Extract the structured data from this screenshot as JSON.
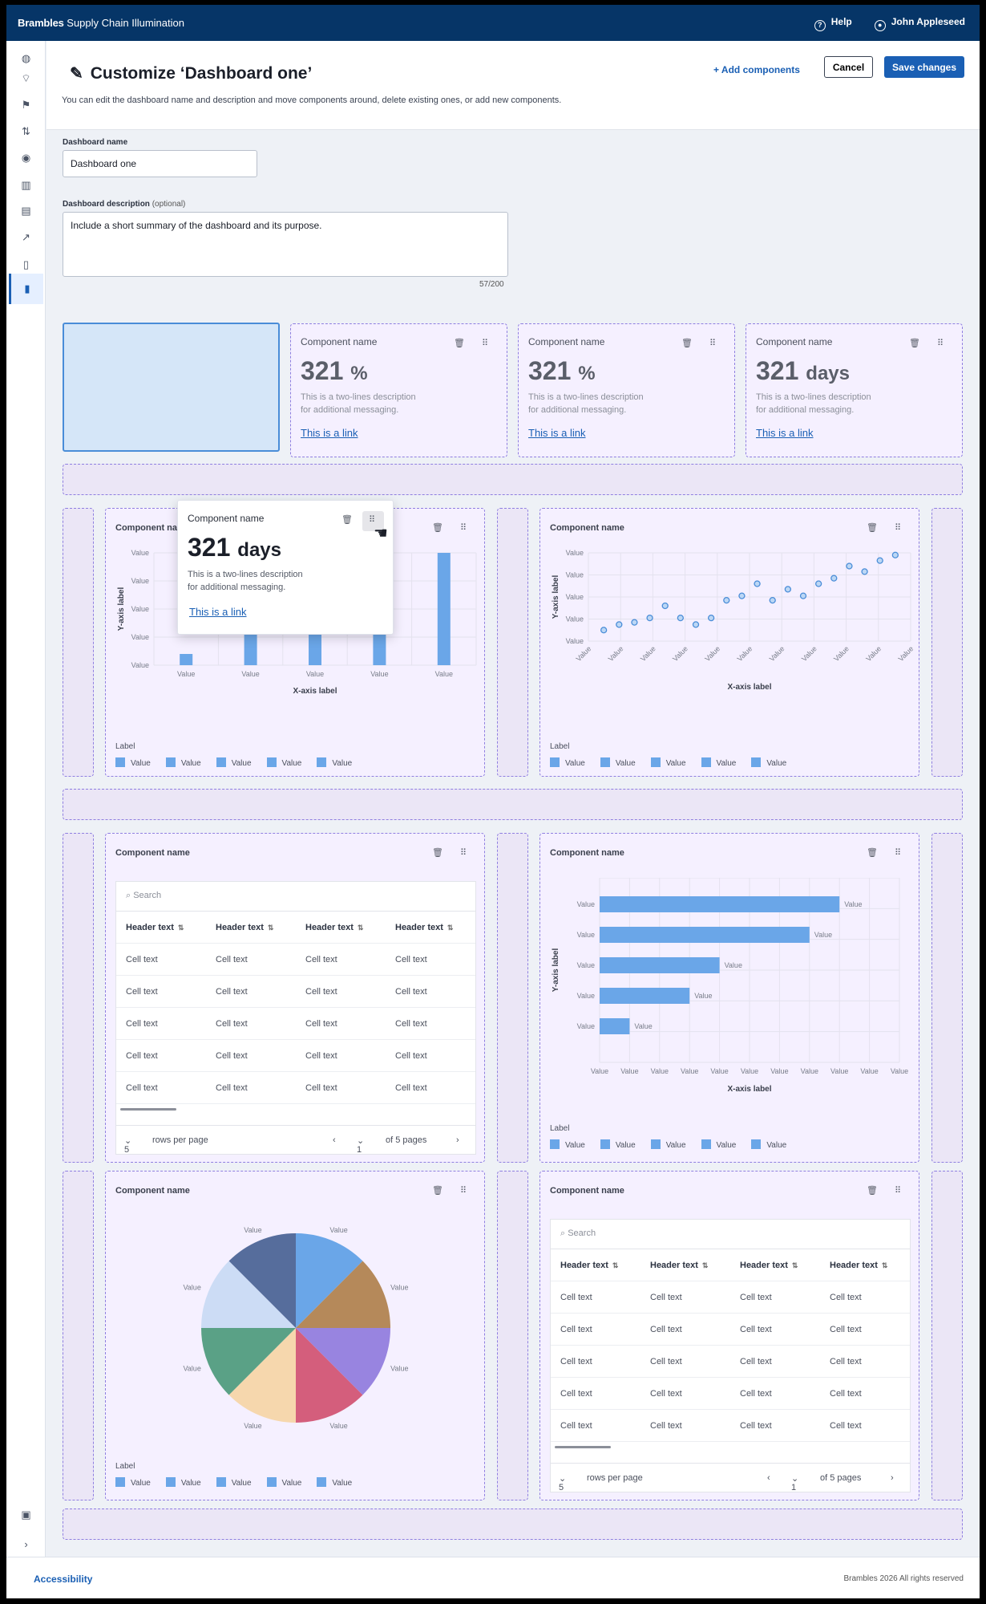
{
  "app": {
    "brand_bold": "Brambles",
    "brand_rest": "Supply Chain Illumination",
    "help": "Help",
    "user": "John Appleseed"
  },
  "header": {
    "title": "Customize ‘Dashboard one’",
    "subtitle": "You can edit the dashboard name and description and move components around, delete existing ones, or add new components.",
    "add_components": "Add components",
    "cancel": "Cancel",
    "save": "Save changes"
  },
  "form": {
    "name_label": "Dashboard name",
    "name_value": "Dashboard one",
    "desc_label": "Dashboard description",
    "desc_optional": "(optional)",
    "desc_value": "Include a short summary of the dashboard and its purpose.",
    "counter": "57/200"
  },
  "kpi": {
    "name": "Component name",
    "value1": "321",
    "unit1": "%",
    "value2": "321",
    "unit2": "%",
    "value3": "321",
    "unit3": "days",
    "desc_l1": "This is a two-lines description",
    "desc_l2": "for additional messaging.",
    "link": "This is a link"
  },
  "popup": {
    "name": "Component name",
    "value": "321",
    "unit": "days",
    "desc_l1": "This is a two-lines description",
    "desc_l2": "for additional messaging.",
    "link": "This is a link"
  },
  "components": {
    "name": "Component name",
    "legend_title": "Label",
    "legend_item": "Value"
  },
  "table": {
    "search": "Search",
    "headers": [
      "Header text",
      "Header text",
      "Header text",
      "Header text"
    ],
    "cell": "Cell text",
    "rows_value": "5",
    "rows_label": "rows per page",
    "page_value": "1",
    "page_of": "of 5 pages"
  },
  "footer": {
    "accessibility": "Accessibility",
    "copyright": "Brambles 2026 All rights reserved"
  },
  "chart_data": [
    {
      "type": "bar",
      "categories": [
        "Value",
        "Value",
        "Value",
        "Value",
        "Value"
      ],
      "values": [
        1,
        4,
        7,
        5,
        10
      ],
      "ylim": [
        0,
        10
      ],
      "ytick_labels": [
        "Value",
        "Value",
        "Value",
        "Value",
        "Value"
      ],
      "xlabel": "X-axis label",
      "ylabel": "Y-axis label",
      "legend": "bottom-left"
    },
    {
      "type": "scatter",
      "x": [
        1,
        2,
        3,
        4,
        5,
        6,
        7,
        8,
        9,
        10,
        11,
        12,
        13,
        14,
        15,
        16,
        17,
        18,
        19,
        20
      ],
      "y": [
        1,
        1.5,
        1.7,
        2.1,
        3.2,
        2.1,
        1.5,
        2.1,
        3.7,
        4.1,
        5.2,
        3.7,
        4.7,
        4.1,
        5.2,
        5.7,
        6.8,
        6.3,
        7.3,
        7.8
      ],
      "xtick_labels": [
        "Value",
        "Value",
        "Value",
        "Value",
        "Value",
        "Value",
        "Value",
        "Value",
        "Value",
        "Value",
        "Value"
      ],
      "ytick_labels": [
        "Value",
        "Value",
        "Value",
        "Value",
        "Value"
      ],
      "xlabel": "X-axis label",
      "ylabel": "Y-axis label",
      "legend": "bottom-left"
    },
    {
      "type": "bar",
      "orientation": "horizontal",
      "categories": [
        "Value",
        "Value",
        "Value",
        "Value",
        "Value"
      ],
      "values": [
        8,
        7,
        4,
        3,
        1
      ],
      "xlim": [
        0,
        10
      ],
      "data_labels": [
        "Value",
        "Value",
        "Value",
        "Value",
        "Value"
      ],
      "xtick_labels": [
        "Value",
        "Value",
        "Value",
        "Value",
        "Value",
        "Value",
        "Value",
        "Value",
        "Value",
        "Value",
        "Value"
      ],
      "xlabel": "X-axis label",
      "ylabel": "Y-axis label",
      "legend": "bottom-left"
    },
    {
      "type": "pie",
      "labels": [
        "Value",
        "Value",
        "Value",
        "Value",
        "Value",
        "Value",
        "Value",
        "Value"
      ],
      "values": [
        1,
        1,
        1,
        1,
        1,
        1,
        1,
        1
      ],
      "colors": [
        "#6aa6e8",
        "#b5895a",
        "#9884e0",
        "#d45e7c",
        "#f6d7ad",
        "#5aa186",
        "#ccdcf5",
        "#566d9c"
      ],
      "legend": "bottom-left"
    }
  ]
}
